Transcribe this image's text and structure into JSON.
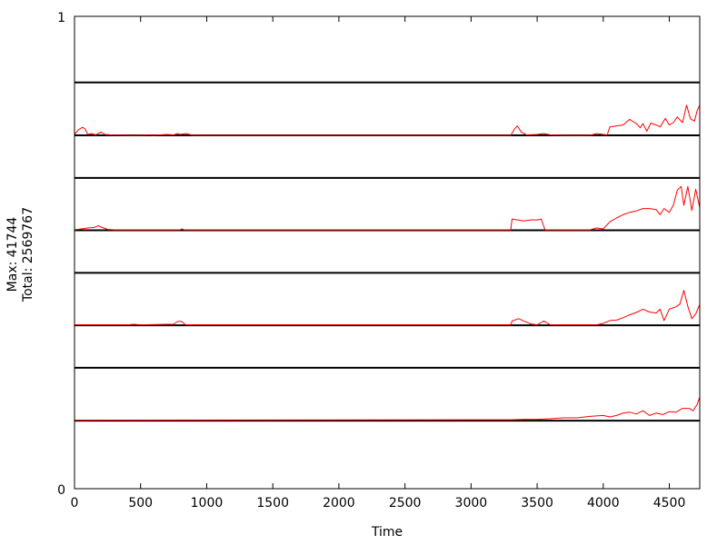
{
  "chart_data": {
    "type": "line",
    "title": "",
    "xlabel": "Time",
    "ylabel_lines": [
      "Max: 41744",
      "Total: 2569767"
    ],
    "y_tick_labels": [
      "1",
      "0"
    ],
    "xlim": [
      0,
      4730
    ],
    "ylim": [
      0,
      1
    ],
    "x_ticks": [
      0,
      500,
      1000,
      1500,
      2000,
      2500,
      3000,
      3500,
      4000,
      4500
    ],
    "grid": false,
    "legend": "none",
    "colors": {
      "series": "#ff0000",
      "band_lines": "#000000",
      "frame": "#000000"
    },
    "bands": [
      {
        "baseline": 0.748,
        "top": 0.86,
        "points": [
          [
            0,
            0.75
          ],
          [
            30,
            0.76
          ],
          [
            60,
            0.765
          ],
          [
            80,
            0.762
          ],
          [
            100,
            0.75
          ],
          [
            130,
            0.752
          ],
          [
            160,
            0.749
          ],
          [
            200,
            0.755
          ],
          [
            230,
            0.75
          ],
          [
            280,
            0.749
          ],
          [
            400,
            0.748
          ],
          [
            500,
            0.748
          ],
          [
            550,
            0.749
          ],
          [
            600,
            0.748
          ],
          [
            700,
            0.75
          ],
          [
            750,
            0.749
          ],
          [
            780,
            0.752
          ],
          [
            800,
            0.75
          ],
          [
            840,
            0.752
          ],
          [
            900,
            0.748
          ],
          [
            3300,
            0.748
          ],
          [
            3330,
            0.762
          ],
          [
            3350,
            0.768
          ],
          [
            3380,
            0.755
          ],
          [
            3420,
            0.749
          ],
          [
            3500,
            0.75
          ],
          [
            3550,
            0.752
          ],
          [
            3600,
            0.749
          ],
          [
            3700,
            0.748
          ],
          [
            3900,
            0.748
          ],
          [
            3950,
            0.752
          ],
          [
            4000,
            0.75
          ],
          [
            4030,
            0.749
          ],
          [
            4050,
            0.766
          ],
          [
            4100,
            0.768
          ],
          [
            4150,
            0.77
          ],
          [
            4200,
            0.782
          ],
          [
            4250,
            0.773
          ],
          [
            4280,
            0.764
          ],
          [
            4300,
            0.773
          ],
          [
            4330,
            0.757
          ],
          [
            4360,
            0.774
          ],
          [
            4400,
            0.77
          ],
          [
            4430,
            0.766
          ],
          [
            4470,
            0.784
          ],
          [
            4500,
            0.77
          ],
          [
            4530,
            0.775
          ],
          [
            4560,
            0.787
          ],
          [
            4600,
            0.775
          ],
          [
            4630,
            0.812
          ],
          [
            4660,
            0.783
          ],
          [
            4690,
            0.778
          ],
          [
            4710,
            0.8
          ],
          [
            4730,
            0.812
          ]
        ]
      },
      {
        "baseline": 0.547,
        "top": 0.658,
        "points": [
          [
            0,
            0.548
          ],
          [
            50,
            0.55
          ],
          [
            100,
            0.552
          ],
          [
            150,
            0.553
          ],
          [
            180,
            0.557
          ],
          [
            200,
            0.554
          ],
          [
            250,
            0.549
          ],
          [
            300,
            0.548
          ],
          [
            500,
            0.548
          ],
          [
            800,
            0.548
          ],
          [
            810,
            0.55
          ],
          [
            830,
            0.548
          ],
          [
            3300,
            0.548
          ],
          [
            3310,
            0.571
          ],
          [
            3400,
            0.567
          ],
          [
            3450,
            0.569
          ],
          [
            3500,
            0.569
          ],
          [
            3530,
            0.571
          ],
          [
            3560,
            0.548
          ],
          [
            3900,
            0.548
          ],
          [
            3950,
            0.552
          ],
          [
            4000,
            0.55
          ],
          [
            4050,
            0.565
          ],
          [
            4100,
            0.573
          ],
          [
            4150,
            0.58
          ],
          [
            4200,
            0.585
          ],
          [
            4250,
            0.588
          ],
          [
            4300,
            0.593
          ],
          [
            4350,
            0.593
          ],
          [
            4400,
            0.591
          ],
          [
            4430,
            0.58
          ],
          [
            4460,
            0.593
          ],
          [
            4500,
            0.585
          ],
          [
            4530,
            0.6
          ],
          [
            4560,
            0.632
          ],
          [
            4590,
            0.64
          ],
          [
            4610,
            0.6
          ],
          [
            4640,
            0.64
          ],
          [
            4670,
            0.589
          ],
          [
            4700,
            0.634
          ],
          [
            4730,
            0.595
          ]
        ]
      },
      {
        "baseline": 0.346,
        "top": 0.457,
        "points": [
          [
            0,
            0.347
          ],
          [
            200,
            0.347
          ],
          [
            400,
            0.347
          ],
          [
            450,
            0.348
          ],
          [
            500,
            0.347
          ],
          [
            700,
            0.348
          ],
          [
            750,
            0.348
          ],
          [
            780,
            0.354
          ],
          [
            810,
            0.354
          ],
          [
            840,
            0.347
          ],
          [
            3300,
            0.347
          ],
          [
            3310,
            0.355
          ],
          [
            3360,
            0.36
          ],
          [
            3400,
            0.355
          ],
          [
            3450,
            0.349
          ],
          [
            3500,
            0.347
          ],
          [
            3550,
            0.355
          ],
          [
            3600,
            0.347
          ],
          [
            3700,
            0.347
          ],
          [
            3950,
            0.347
          ],
          [
            4000,
            0.35
          ],
          [
            4050,
            0.356
          ],
          [
            4100,
            0.357
          ],
          [
            4150,
            0.362
          ],
          [
            4200,
            0.368
          ],
          [
            4250,
            0.373
          ],
          [
            4300,
            0.38
          ],
          [
            4350,
            0.374
          ],
          [
            4400,
            0.372
          ],
          [
            4430,
            0.38
          ],
          [
            4460,
            0.356
          ],
          [
            4500,
            0.38
          ],
          [
            4550,
            0.385
          ],
          [
            4580,
            0.391
          ],
          [
            4610,
            0.42
          ],
          [
            4640,
            0.386
          ],
          [
            4670,
            0.36
          ],
          [
            4700,
            0.37
          ],
          [
            4730,
            0.39
          ]
        ]
      },
      {
        "baseline": 0.144,
        "top": 0.256,
        "points": [
          [
            0,
            0.145
          ],
          [
            3300,
            0.146
          ],
          [
            3400,
            0.147
          ],
          [
            3500,
            0.147
          ],
          [
            3600,
            0.148
          ],
          [
            3700,
            0.15
          ],
          [
            3800,
            0.15
          ],
          [
            3900,
            0.153
          ],
          [
            4000,
            0.155
          ],
          [
            4050,
            0.152
          ],
          [
            4100,
            0.155
          ],
          [
            4150,
            0.16
          ],
          [
            4200,
            0.162
          ],
          [
            4250,
            0.158
          ],
          [
            4300,
            0.165
          ],
          [
            4350,
            0.155
          ],
          [
            4400,
            0.16
          ],
          [
            4450,
            0.157
          ],
          [
            4500,
            0.163
          ],
          [
            4550,
            0.162
          ],
          [
            4600,
            0.17
          ],
          [
            4650,
            0.17
          ],
          [
            4680,
            0.165
          ],
          [
            4710,
            0.178
          ],
          [
            4730,
            0.194
          ]
        ]
      }
    ]
  }
}
